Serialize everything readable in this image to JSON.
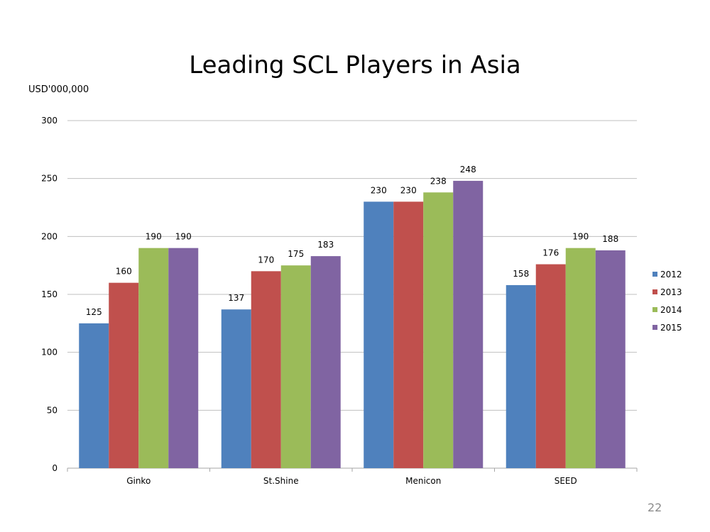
{
  "slide": {
    "title": "Leading SCL Players in Asia",
    "page_number": "22"
  },
  "chart_data": {
    "type": "bar",
    "title": "Leading SCL Players in Asia",
    "ylabel": "USD'000,000",
    "xlabel": "",
    "categories": [
      "Ginko",
      "St.Shine",
      "Menicon",
      "SEED"
    ],
    "series": [
      {
        "name": "2012",
        "color": "#4f81bd",
        "values": [
          125,
          137,
          230,
          158
        ]
      },
      {
        "name": "2013",
        "color": "#c0504d",
        "values": [
          160,
          170,
          230,
          176
        ]
      },
      {
        "name": "2014",
        "color": "#9bbb59",
        "values": [
          190,
          175,
          238,
          190
        ]
      },
      {
        "name": "2015",
        "color": "#8064a2",
        "values": [
          190,
          183,
          248,
          188
        ]
      }
    ],
    "ylim": [
      0,
      300
    ],
    "yticks": [
      0,
      50,
      100,
      150,
      200,
      250,
      300
    ],
    "grid": true,
    "legend": "right",
    "data_labels": true
  }
}
